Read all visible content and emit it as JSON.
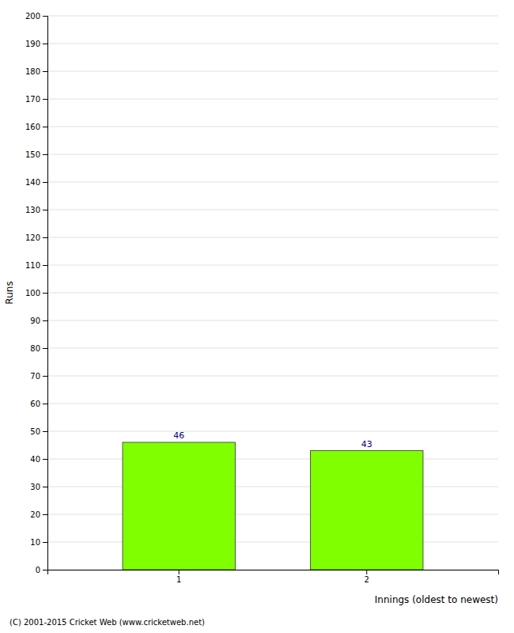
{
  "chart_data": {
    "type": "bar",
    "categories": [
      "1",
      "2"
    ],
    "values": [
      46,
      43
    ],
    "color": "#7FFF00",
    "xlabel": "Innings (oldest to newest)",
    "ylabel": "Runs",
    "annotations": [
      "(C) 2001-2015 Cricket Web (www.cricketweb.net)"
    ],
    "ylim": [
      0,
      200
    ],
    "yticks": [
      0,
      10,
      20,
      30,
      40,
      50,
      60,
      70,
      80,
      90,
      100,
      110,
      120,
      130,
      140,
      150,
      160,
      170,
      180,
      190,
      200
    ],
    "grid": true,
    "data_labels": true
  }
}
